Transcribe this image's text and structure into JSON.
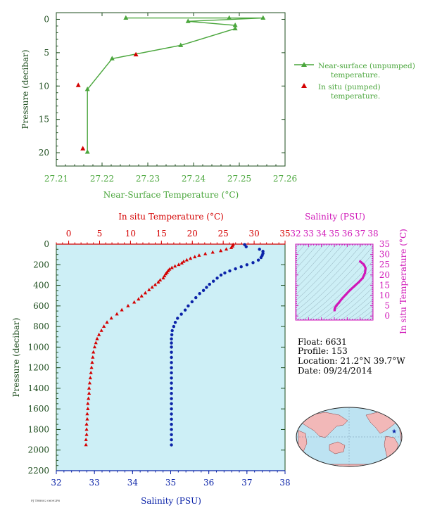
{
  "colors": {
    "green": "#4aa63c",
    "red": "#d40000",
    "blue": "#0a22a8",
    "magenta": "#d018b8",
    "plot_bg": "#cdeff6",
    "axis_dark": "#1e4d1e",
    "land": "#f2b8b8",
    "ocean": "#bde3f2"
  },
  "chart_data": [
    {
      "type": "line",
      "xlabel": "Near-Surface Temperature (°C)",
      "ylabel": "Pressure (decibar)",
      "xlim": [
        27.21,
        27.26
      ],
      "ylim": [
        22,
        -1
      ],
      "xticks": [
        "27.21",
        "27.22",
        "27.23",
        "27.24",
        "27.25",
        "27.26"
      ],
      "yticks": [
        "0",
        "5",
        "10",
        "15",
        "20"
      ],
      "legend": [
        "Near-surface (unpumped) temperature.",
        "In situ (pumped) temperature."
      ],
      "series": [
        {
          "name": "Near-surface (unpumped) temperature.",
          "marker": "triangle-line",
          "points": [
            [
              27.2252,
              -0.2
            ],
            [
              27.2478,
              -0.2
            ],
            [
              27.2552,
              -0.2
            ],
            [
              27.2388,
              0.3
            ],
            [
              27.2491,
              0.9
            ],
            [
              27.2491,
              1.4
            ],
            [
              27.2372,
              3.9
            ],
            [
              27.2222,
              5.9
            ],
            [
              27.2168,
              10.5
            ],
            [
              27.2168,
              19.9
            ]
          ]
        },
        {
          "name": "In situ (pumped) temperature.",
          "marker": "triangle",
          "points": [
            [
              27.2274,
              5.3
            ],
            [
              27.2148,
              9.9
            ],
            [
              27.2158,
              19.4
            ]
          ]
        }
      ]
    },
    {
      "type": "scatter",
      "ylabel": "Pressure (decibar)",
      "ylim": [
        2200,
        0
      ],
      "yticks": [
        "0",
        "200",
        "400",
        "600",
        "800",
        "1000",
        "1200",
        "1400",
        "1600",
        "1800",
        "2000",
        "2200"
      ],
      "top_axis": {
        "label": "In situ Temperature (°C)",
        "lim": [
          -2,
          35
        ],
        "ticks": [
          "0",
          "5",
          "10",
          "15",
          "20",
          "25",
          "30",
          "35"
        ]
      },
      "bottom_axis": {
        "label": "Salinity (PSU)",
        "lim": [
          32,
          38
        ],
        "ticks": [
          "32",
          "33",
          "34",
          "35",
          "36",
          "37",
          "38"
        ]
      },
      "temperature_profile": [
        [
          26.6,
          5
        ],
        [
          26.5,
          20
        ],
        [
          26.3,
          35
        ],
        [
          25.5,
          50
        ],
        [
          24.6,
          65
        ],
        [
          23.3,
          80
        ],
        [
          22.1,
          95
        ],
        [
          21.1,
          110
        ],
        [
          20.4,
          125
        ],
        [
          19.7,
          140
        ],
        [
          19.1,
          155
        ],
        [
          18.6,
          170
        ],
        [
          18.3,
          185
        ],
        [
          17.8,
          200
        ],
        [
          17.2,
          215
        ],
        [
          16.7,
          230
        ],
        [
          16.3,
          245
        ],
        [
          16.1,
          260
        ],
        [
          15.9,
          275
        ],
        [
          15.7,
          290
        ],
        [
          15.5,
          310
        ],
        [
          15.3,
          330
        ],
        [
          14.8,
          350
        ],
        [
          14.5,
          370
        ],
        [
          14.0,
          395
        ],
        [
          13.5,
          420
        ],
        [
          13.0,
          445
        ],
        [
          12.4,
          475
        ],
        [
          11.8,
          505
        ],
        [
          11.3,
          535
        ],
        [
          10.6,
          565
        ],
        [
          9.6,
          600
        ],
        [
          8.6,
          640
        ],
        [
          7.8,
          680
        ],
        [
          6.9,
          720
        ],
        [
          6.2,
          760
        ],
        [
          5.7,
          800
        ],
        [
          5.3,
          840
        ],
        [
          4.9,
          880
        ],
        [
          4.6,
          920
        ],
        [
          4.4,
          960
        ],
        [
          4.2,
          1000
        ],
        [
          4.0,
          1050
        ],
        [
          3.9,
          1100
        ],
        [
          3.8,
          1150
        ],
        [
          3.7,
          1200
        ],
        [
          3.6,
          1250
        ],
        [
          3.5,
          1300
        ],
        [
          3.4,
          1350
        ],
        [
          3.3,
          1400
        ],
        [
          3.3,
          1450
        ],
        [
          3.2,
          1500
        ],
        [
          3.1,
          1550
        ],
        [
          3.1,
          1600
        ],
        [
          3.0,
          1650
        ],
        [
          3.0,
          1700
        ],
        [
          2.9,
          1750
        ],
        [
          2.9,
          1800
        ],
        [
          2.9,
          1850
        ],
        [
          2.8,
          1900
        ],
        [
          2.8,
          1950
        ]
      ],
      "salinity_profile": [
        [
          36.94,
          5
        ],
        [
          36.98,
          25
        ],
        [
          37.33,
          50
        ],
        [
          37.42,
          70
        ],
        [
          37.42,
          90
        ],
        [
          37.4,
          110
        ],
        [
          37.37,
          130
        ],
        [
          37.3,
          155
        ],
        [
          37.16,
          180
        ],
        [
          37.0,
          200
        ],
        [
          36.85,
          220
        ],
        [
          36.7,
          240
        ],
        [
          36.55,
          260
        ],
        [
          36.42,
          280
        ],
        [
          36.32,
          300
        ],
        [
          36.22,
          330
        ],
        [
          36.12,
          360
        ],
        [
          36.02,
          390
        ],
        [
          35.94,
          420
        ],
        [
          35.86,
          450
        ],
        [
          35.76,
          480
        ],
        [
          35.66,
          520
        ],
        [
          35.56,
          560
        ],
        [
          35.46,
          600
        ],
        [
          35.38,
          640
        ],
        [
          35.28,
          680
        ],
        [
          35.18,
          720
        ],
        [
          35.12,
          760
        ],
        [
          35.08,
          800
        ],
        [
          35.04,
          840
        ],
        [
          35.03,
          880
        ],
        [
          35.02,
          920
        ],
        [
          35.02,
          960
        ],
        [
          35.02,
          1000
        ],
        [
          35.02,
          1050
        ],
        [
          35.02,
          1100
        ],
        [
          35.02,
          1150
        ],
        [
          35.02,
          1200
        ],
        [
          35.02,
          1250
        ],
        [
          35.02,
          1300
        ],
        [
          35.02,
          1350
        ],
        [
          35.02,
          1400
        ],
        [
          35.02,
          1450
        ],
        [
          35.02,
          1500
        ],
        [
          35.02,
          1550
        ],
        [
          35.02,
          1600
        ],
        [
          35.02,
          1650
        ],
        [
          35.02,
          1700
        ],
        [
          35.02,
          1750
        ],
        [
          35.02,
          1800
        ],
        [
          35.02,
          1850
        ],
        [
          35.02,
          1900
        ],
        [
          35.02,
          1950
        ]
      ]
    },
    {
      "type": "scatter",
      "xlabel": "Salinity (PSU)",
      "ylabel": "In situ Temperature (°C)",
      "xlim": [
        32,
        38
      ],
      "ylim": [
        -2,
        35
      ],
      "xticks": [
        "32",
        "33",
        "34",
        "35",
        "36",
        "37",
        "38"
      ],
      "yticks": [
        "0",
        "5",
        "10",
        "15",
        "20",
        "25",
        "30",
        "35"
      ],
      "points": [
        [
          37.0,
          26.6
        ],
        [
          37.3,
          25.0
        ],
        [
          37.42,
          23.3
        ],
        [
          37.38,
          21.0
        ],
        [
          37.2,
          18.5
        ],
        [
          36.9,
          16.5
        ],
        [
          36.55,
          14.5
        ],
        [
          36.2,
          12.5
        ],
        [
          35.9,
          10.5
        ],
        [
          35.6,
          8.5
        ],
        [
          35.35,
          6.5
        ],
        [
          35.15,
          5.0
        ],
        [
          35.05,
          4.0
        ],
        [
          35.02,
          3.2
        ],
        [
          35.02,
          2.8
        ]
      ]
    }
  ],
  "info": {
    "float": "Float:  6631",
    "profile": "Profile:  153",
    "location": "Location:  21.2°N  39.7°W",
    "date": "Date:  09/24/2014"
  },
  "tiny_label": "PJ TH8802 06092F6"
}
